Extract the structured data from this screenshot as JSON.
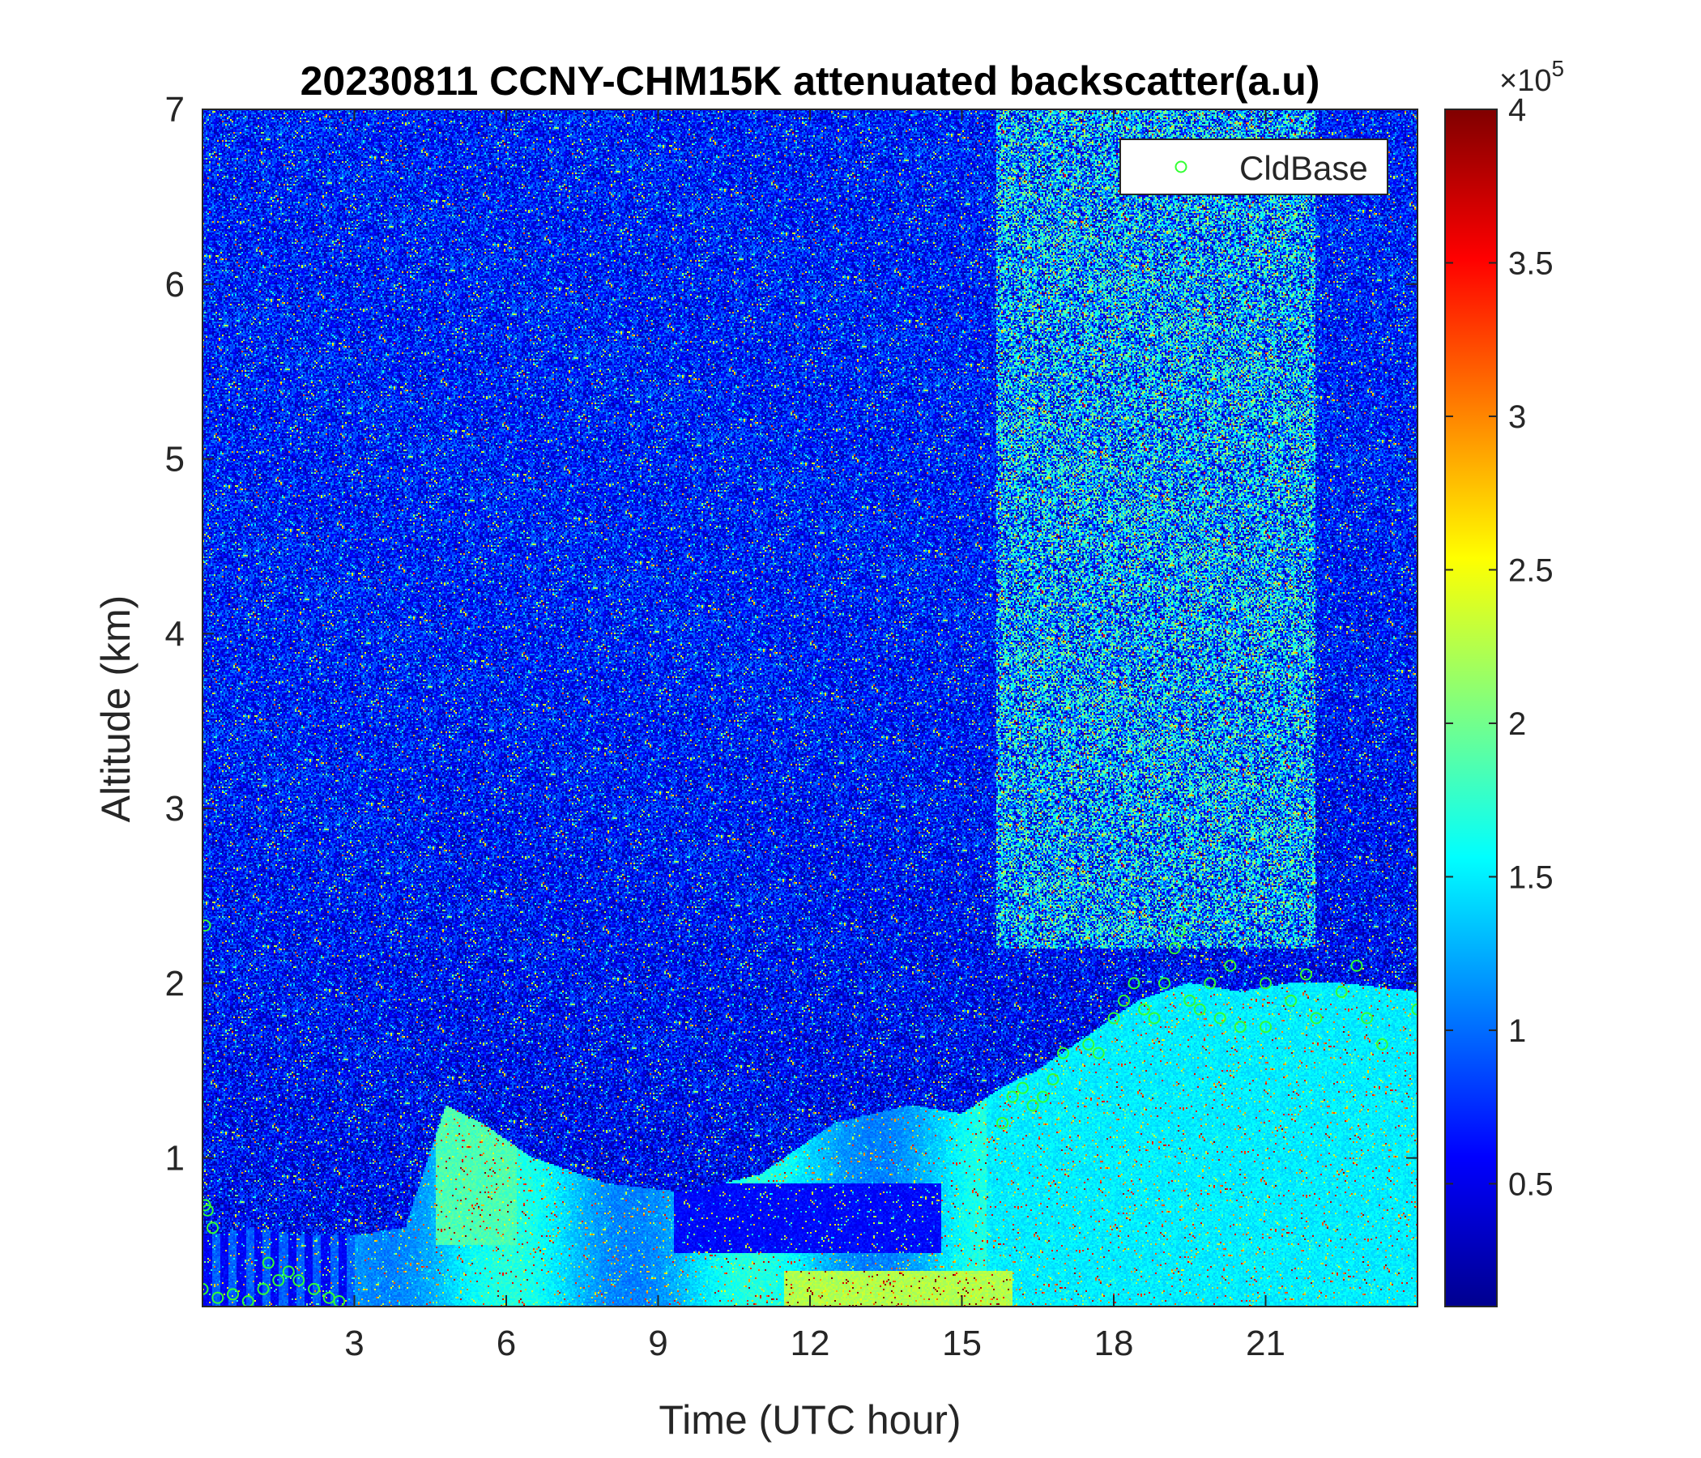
{
  "chart_data": {
    "type": "heatmap",
    "title": "20230811 CCNY-CHM15K attenuated backscatter(a.u)",
    "xlabel": "Time (UTC hour)",
    "ylabel": "Altitude (km)",
    "xlim": [
      0,
      24
    ],
    "ylim": [
      0.15,
      7
    ],
    "xticks": [
      3,
      6,
      9,
      12,
      15,
      18,
      21
    ],
    "yticks": [
      1,
      2,
      3,
      4,
      5,
      6,
      7
    ],
    "colorbar": {
      "min": 0.1,
      "max": 4,
      "multiplier": "×10",
      "exponent": "5",
      "ticks": [
        0.5,
        1,
        1.5,
        2,
        2.5,
        3,
        3.5,
        4
      ],
      "colormap": "jet"
    },
    "legend": {
      "label": "CldBase",
      "marker": "circle",
      "color": "#33ff33",
      "placement": "top-right"
    },
    "features": {
      "boundary_layer_top_km": [
        [
          0.0,
          0.55
        ],
        [
          1.0,
          0.6
        ],
        [
          2.0,
          0.55
        ],
        [
          3.0,
          0.55
        ],
        [
          4.0,
          0.6
        ],
        [
          4.8,
          1.3
        ],
        [
          5.5,
          1.2
        ],
        [
          6.5,
          1.0
        ],
        [
          8.0,
          0.85
        ],
        [
          9.5,
          0.8
        ],
        [
          11.0,
          0.9
        ],
        [
          12.5,
          1.2
        ],
        [
          14.0,
          1.3
        ],
        [
          15.0,
          1.25
        ],
        [
          15.8,
          1.4
        ],
        [
          16.5,
          1.5
        ],
        [
          17.5,
          1.7
        ],
        [
          18.5,
          1.9
        ],
        [
          19.5,
          2.0
        ],
        [
          20.5,
          1.95
        ],
        [
          21.5,
          2.0
        ],
        [
          22.5,
          2.0
        ],
        [
          24.0,
          1.95
        ]
      ],
      "cloud_base_points": [
        [
          0.05,
          2.33
        ],
        [
          0.05,
          0.73
        ],
        [
          0.1,
          0.7
        ],
        [
          0.2,
          0.6
        ],
        [
          0.0,
          0.25
        ],
        [
          0.3,
          0.2
        ],
        [
          0.6,
          0.22
        ],
        [
          0.9,
          0.18
        ],
        [
          1.2,
          0.25
        ],
        [
          1.3,
          0.4
        ],
        [
          1.5,
          0.3
        ],
        [
          1.7,
          0.35
        ],
        [
          1.9,
          0.3
        ],
        [
          2.2,
          0.25
        ],
        [
          2.5,
          0.2
        ],
        [
          2.7,
          0.18
        ],
        [
          15.8,
          1.2
        ],
        [
          16.0,
          1.35
        ],
        [
          16.2,
          1.4
        ],
        [
          16.4,
          1.3
        ],
        [
          16.6,
          1.35
        ],
        [
          16.8,
          1.45
        ],
        [
          17.0,
          1.6
        ],
        [
          17.5,
          1.65
        ],
        [
          17.7,
          1.6
        ],
        [
          18.0,
          1.8
        ],
        [
          18.2,
          1.9
        ],
        [
          18.4,
          2.0
        ],
        [
          18.6,
          1.85
        ],
        [
          18.8,
          1.8
        ],
        [
          19.0,
          2.0
        ],
        [
          19.2,
          2.2
        ],
        [
          19.3,
          2.3
        ],
        [
          19.5,
          1.9
        ],
        [
          19.7,
          1.85
        ],
        [
          19.9,
          2.0
        ],
        [
          20.1,
          1.8
        ],
        [
          20.3,
          2.1
        ],
        [
          20.5,
          1.75
        ],
        [
          21.0,
          2.0
        ],
        [
          21.0,
          1.75
        ],
        [
          21.5,
          1.9
        ],
        [
          21.8,
          2.05
        ],
        [
          22.0,
          1.8
        ],
        [
          22.5,
          1.95
        ],
        [
          22.8,
          2.1
        ],
        [
          23.0,
          1.8
        ],
        [
          23.3,
          1.65
        ],
        [
          24.0,
          1.85
        ]
      ]
    }
  }
}
